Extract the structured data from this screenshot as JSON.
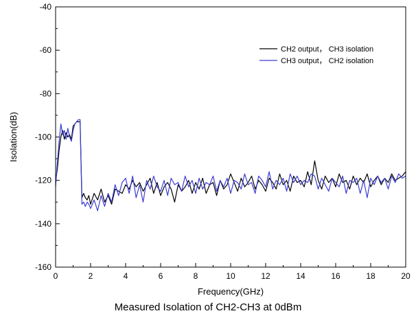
{
  "chart_data": {
    "type": "line",
    "title": "",
    "xlabel": "Frequency(GHz)",
    "ylabel": "Isolation(dB)",
    "xlim": [
      0,
      20
    ],
    "ylim": [
      -160,
      -40
    ],
    "xticks": [
      0,
      2,
      4,
      6,
      8,
      10,
      12,
      14,
      16,
      18,
      20
    ],
    "yticks": [
      -160,
      -140,
      -120,
      -100,
      -80,
      -60,
      -40
    ],
    "grid": false,
    "legend_position": "top-right",
    "series": [
      {
        "name": "CH2 output， CH3 isolation",
        "color": "#000000",
        "x": [
          0,
          0.1,
          0.2,
          0.3,
          0.4,
          0.5,
          0.6,
          0.7,
          0.8,
          0.9,
          1.0,
          1.1,
          1.2,
          1.3,
          1.4,
          1.5,
          1.6,
          1.7,
          1.8,
          1.9,
          2.0,
          2.2,
          2.4,
          2.6,
          2.8,
          3.0,
          3.2,
          3.4,
          3.6,
          3.8,
          4.0,
          4.2,
          4.4,
          4.6,
          4.8,
          5.0,
          5.2,
          5.4,
          5.6,
          5.8,
          6.0,
          6.2,
          6.4,
          6.6,
          6.8,
          7.0,
          7.2,
          7.4,
          7.6,
          7.8,
          8.0,
          8.2,
          8.4,
          8.6,
          8.8,
          9.0,
          9.2,
          9.4,
          9.6,
          9.8,
          10.0,
          10.2,
          10.4,
          10.6,
          10.8,
          11.0,
          11.2,
          11.4,
          11.6,
          11.8,
          12.0,
          12.2,
          12.4,
          12.6,
          12.8,
          13.0,
          13.2,
          13.4,
          13.6,
          13.8,
          14.0,
          14.2,
          14.4,
          14.6,
          14.8,
          15.0,
          15.2,
          15.4,
          15.6,
          15.8,
          16.0,
          16.2,
          16.4,
          16.6,
          16.8,
          17.0,
          17.2,
          17.4,
          17.6,
          17.8,
          18.0,
          18.2,
          18.4,
          18.6,
          18.8,
          19.0,
          19.2,
          19.4,
          19.6,
          19.8,
          20.0
        ],
        "y": [
          -120,
          -115,
          -106,
          -100,
          -97,
          -101,
          -98,
          -100,
          -99,
          -101,
          -95,
          -94,
          -93,
          -93,
          -93,
          -128,
          -126,
          -128,
          -129,
          -127,
          -131,
          -126,
          -129,
          -124,
          -130,
          -127,
          -131,
          -124,
          -125,
          -126,
          -122,
          -124,
          -120,
          -123,
          -121,
          -125,
          -122,
          -119,
          -126,
          -121,
          -127,
          -123,
          -121,
          -124,
          -130,
          -122,
          -125,
          -123,
          -120,
          -126,
          -121,
          -124,
          -119,
          -126,
          -122,
          -121,
          -127,
          -120,
          -124,
          -122,
          -117,
          -121,
          -125,
          -119,
          -123,
          -121,
          -118,
          -124,
          -120,
          -122,
          -125,
          -119,
          -121,
          -124,
          -117,
          -122,
          -120,
          -125,
          -118,
          -121,
          -120,
          -123,
          -116,
          -122,
          -111,
          -120,
          -124,
          -118,
          -121,
          -119,
          -123,
          -117,
          -121,
          -120,
          -124,
          -118,
          -122,
          -119,
          -121,
          -117,
          -123,
          -120,
          -118,
          -122,
          -119,
          -121,
          -117,
          -120,
          -119,
          -118,
          -116
        ]
      },
      {
        "name": "CH3 output， CH2 isolation",
        "color": "#3b3bd4",
        "x": [
          0,
          0.1,
          0.2,
          0.3,
          0.4,
          0.5,
          0.6,
          0.7,
          0.8,
          0.9,
          1.0,
          1.1,
          1.2,
          1.3,
          1.4,
          1.5,
          1.6,
          1.7,
          1.8,
          1.9,
          2.0,
          2.2,
          2.4,
          2.6,
          2.8,
          3.0,
          3.2,
          3.4,
          3.6,
          3.8,
          4.0,
          4.2,
          4.4,
          4.6,
          4.8,
          5.0,
          5.2,
          5.4,
          5.6,
          5.8,
          6.0,
          6.2,
          6.4,
          6.6,
          6.8,
          7.0,
          7.2,
          7.4,
          7.6,
          7.8,
          8.0,
          8.2,
          8.4,
          8.6,
          8.8,
          9.0,
          9.2,
          9.4,
          9.6,
          9.8,
          10.0,
          10.2,
          10.4,
          10.6,
          10.8,
          11.0,
          11.2,
          11.4,
          11.6,
          11.8,
          12.0,
          12.2,
          12.4,
          12.6,
          12.8,
          13.0,
          13.2,
          13.4,
          13.6,
          13.8,
          14.0,
          14.2,
          14.4,
          14.6,
          14.8,
          15.0,
          15.2,
          15.4,
          15.6,
          15.8,
          16.0,
          16.2,
          16.4,
          16.6,
          16.8,
          17.0,
          17.2,
          17.4,
          17.6,
          17.8,
          18.0,
          18.2,
          18.4,
          18.6,
          18.8,
          19.0,
          19.2,
          19.4,
          19.6,
          19.8,
          20.0
        ],
        "y": [
          -123,
          -112,
          -102,
          -94,
          -99,
          -97,
          -101,
          -96,
          -100,
          -102,
          -97,
          -94,
          -93,
          -92,
          -92,
          -131,
          -130,
          -132,
          -130,
          -131,
          -133,
          -129,
          -134,
          -127,
          -132,
          -126,
          -130,
          -122,
          -127,
          -121,
          -119,
          -126,
          -118,
          -128,
          -122,
          -130,
          -120,
          -124,
          -118,
          -123,
          -125,
          -120,
          -127,
          -119,
          -122,
          -121,
          -125,
          -118,
          -123,
          -120,
          -126,
          -119,
          -124,
          -121,
          -122,
          -118,
          -125,
          -120,
          -123,
          -119,
          -126,
          -120,
          -121,
          -124,
          -117,
          -122,
          -121,
          -126,
          -118,
          -120,
          -123,
          -116,
          -124,
          -120,
          -122,
          -119,
          -125,
          -117,
          -121,
          -118,
          -122,
          -120,
          -121,
          -117,
          -118,
          -124,
          -119,
          -122,
          -125,
          -119,
          -121,
          -123,
          -118,
          -126,
          -120,
          -121,
          -119,
          -126,
          -120,
          -128,
          -119,
          -122,
          -118,
          -121,
          -119,
          -124,
          -118,
          -121,
          -117,
          -119,
          -118
        ]
      }
    ]
  },
  "caption": "Measured Isolation of CH2-CH3 at 0dBm"
}
